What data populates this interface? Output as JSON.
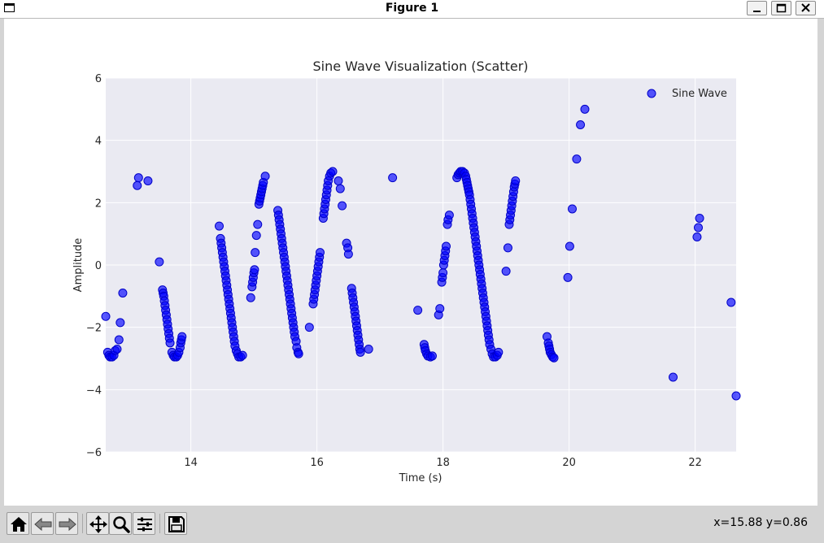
{
  "window": {
    "title": "Figure 1",
    "controls": [
      "minimize",
      "maximize",
      "close"
    ]
  },
  "toolbar": {
    "buttons": [
      "home-icon",
      "back-icon",
      "forward-icon",
      "pan-icon",
      "zoom-icon",
      "configure-icon",
      "save-icon"
    ],
    "coords": "x=15.88 y=0.86"
  },
  "chart_data": {
    "type": "scatter",
    "title": "Sine Wave Visualization (Scatter)",
    "xlabel": "Time (s)",
    "ylabel": "Amplitude",
    "xlim": [
      12.65,
      22.65
    ],
    "ylim": [
      -6,
      6
    ],
    "xticks": [
      14,
      16,
      18,
      20,
      22
    ],
    "yticks": [
      -6,
      -4,
      -2,
      0,
      2,
      4,
      6
    ],
    "grid": true,
    "legend": "top-right",
    "marker_color": "#0000ff",
    "plot_background": "#eaeaf2",
    "series": [
      {
        "name": "Sine Wave",
        "points": [
          [
            12.65,
            -1.65
          ],
          [
            12.68,
            -2.8
          ],
          [
            12.7,
            -2.9
          ],
          [
            12.72,
            -2.95
          ],
          [
            12.75,
            -2.95
          ],
          [
            12.78,
            -2.9
          ],
          [
            12.8,
            -2.75
          ],
          [
            12.83,
            -2.7
          ],
          [
            12.86,
            -2.4
          ],
          [
            12.88,
            -1.85
          ],
          [
            12.92,
            -0.9
          ],
          [
            13.15,
            2.55
          ],
          [
            13.17,
            2.8
          ],
          [
            13.32,
            2.7
          ],
          [
            13.5,
            0.1
          ],
          [
            13.55,
            -0.8
          ],
          [
            13.56,
            -0.9
          ],
          [
            13.57,
            -1.0
          ],
          [
            13.58,
            -1.15
          ],
          [
            13.59,
            -1.3
          ],
          [
            13.6,
            -1.45
          ],
          [
            13.61,
            -1.6
          ],
          [
            13.62,
            -1.75
          ],
          [
            13.63,
            -1.9
          ],
          [
            13.64,
            -2.05
          ],
          [
            13.65,
            -2.2
          ],
          [
            13.66,
            -2.35
          ],
          [
            13.67,
            -2.5
          ],
          [
            13.7,
            -2.8
          ],
          [
            13.72,
            -2.9
          ],
          [
            13.74,
            -2.95
          ],
          [
            13.77,
            -2.95
          ],
          [
            13.79,
            -2.9
          ],
          [
            13.81,
            -2.8
          ],
          [
            13.83,
            -2.65
          ],
          [
            13.84,
            -2.5
          ],
          [
            13.85,
            -2.4
          ],
          [
            13.86,
            -2.3
          ],
          [
            14.45,
            1.25
          ],
          [
            14.47,
            0.85
          ],
          [
            14.48,
            0.7
          ],
          [
            14.49,
            0.55
          ],
          [
            14.5,
            0.4
          ],
          [
            14.51,
            0.25
          ],
          [
            14.52,
            0.1
          ],
          [
            14.53,
            -0.05
          ],
          [
            14.54,
            -0.2
          ],
          [
            14.55,
            -0.35
          ],
          [
            14.56,
            -0.5
          ],
          [
            14.57,
            -0.65
          ],
          [
            14.58,
            -0.8
          ],
          [
            14.59,
            -0.95
          ],
          [
            14.6,
            -1.1
          ],
          [
            14.61,
            -1.25
          ],
          [
            14.62,
            -1.4
          ],
          [
            14.63,
            -1.55
          ],
          [
            14.64,
            -1.7
          ],
          [
            14.65,
            -1.85
          ],
          [
            14.66,
            -2.0
          ],
          [
            14.67,
            -2.15
          ],
          [
            14.68,
            -2.3
          ],
          [
            14.69,
            -2.45
          ],
          [
            14.7,
            -2.6
          ],
          [
            14.72,
            -2.75
          ],
          [
            14.74,
            -2.85
          ],
          [
            14.76,
            -2.95
          ],
          [
            14.79,
            -2.95
          ],
          [
            14.82,
            -2.9
          ],
          [
            14.95,
            -1.05
          ],
          [
            14.97,
            -0.7
          ],
          [
            14.98,
            -0.55
          ],
          [
            14.99,
            -0.4
          ],
          [
            15.0,
            -0.25
          ],
          [
            15.01,
            -0.15
          ],
          [
            15.02,
            0.4
          ],
          [
            15.04,
            0.95
          ],
          [
            15.06,
            1.3
          ],
          [
            15.08,
            1.95
          ],
          [
            15.09,
            2.05
          ],
          [
            15.1,
            2.15
          ],
          [
            15.11,
            2.25
          ],
          [
            15.12,
            2.35
          ],
          [
            15.13,
            2.45
          ],
          [
            15.14,
            2.55
          ],
          [
            15.15,
            2.65
          ],
          [
            15.18,
            2.85
          ],
          [
            15.38,
            1.75
          ],
          [
            15.39,
            1.6
          ],
          [
            15.4,
            1.45
          ],
          [
            15.41,
            1.3
          ],
          [
            15.42,
            1.15
          ],
          [
            15.43,
            1.0
          ],
          [
            15.44,
            0.85
          ],
          [
            15.45,
            0.7
          ],
          [
            15.46,
            0.55
          ],
          [
            15.47,
            0.4
          ],
          [
            15.48,
            0.25
          ],
          [
            15.49,
            0.1
          ],
          [
            15.5,
            -0.05
          ],
          [
            15.51,
            -0.2
          ],
          [
            15.52,
            -0.35
          ],
          [
            15.53,
            -0.5
          ],
          [
            15.54,
            -0.65
          ],
          [
            15.55,
            -0.8
          ],
          [
            15.56,
            -0.95
          ],
          [
            15.57,
            -1.1
          ],
          [
            15.58,
            -1.25
          ],
          [
            15.59,
            -1.4
          ],
          [
            15.6,
            -1.55
          ],
          [
            15.61,
            -1.7
          ],
          [
            15.62,
            -1.85
          ],
          [
            15.63,
            -2.0
          ],
          [
            15.64,
            -2.15
          ],
          [
            15.65,
            -2.3
          ],
          [
            15.67,
            -2.45
          ],
          [
            15.68,
            -2.65
          ],
          [
            15.7,
            -2.8
          ],
          [
            15.71,
            -2.85
          ],
          [
            15.88,
            -2.0
          ],
          [
            15.94,
            -1.25
          ],
          [
            15.95,
            -1.1
          ],
          [
            15.96,
            -0.95
          ],
          [
            15.97,
            -0.8
          ],
          [
            15.98,
            -0.65
          ],
          [
            15.99,
            -0.5
          ],
          [
            16.0,
            -0.35
          ],
          [
            16.01,
            -0.2
          ],
          [
            16.02,
            -0.05
          ],
          [
            16.03,
            0.1
          ],
          [
            16.04,
            0.25
          ],
          [
            16.05,
            0.4
          ],
          [
            16.1,
            1.5
          ],
          [
            16.11,
            1.65
          ],
          [
            16.12,
            1.8
          ],
          [
            16.13,
            1.95
          ],
          [
            16.14,
            2.1
          ],
          [
            16.15,
            2.25
          ],
          [
            16.16,
            2.4
          ],
          [
            16.17,
            2.55
          ],
          [
            16.18,
            2.7
          ],
          [
            16.2,
            2.85
          ],
          [
            16.22,
            2.95
          ],
          [
            16.25,
            3.0
          ],
          [
            16.34,
            2.7
          ],
          [
            16.37,
            2.45
          ],
          [
            16.4,
            1.9
          ],
          [
            16.47,
            0.7
          ],
          [
            16.49,
            0.55
          ],
          [
            16.5,
            0.35
          ],
          [
            16.55,
            -0.75
          ],
          [
            16.56,
            -0.9
          ],
          [
            16.57,
            -1.05
          ],
          [
            16.58,
            -1.2
          ],
          [
            16.59,
            -1.35
          ],
          [
            16.6,
            -1.5
          ],
          [
            16.61,
            -1.65
          ],
          [
            16.62,
            -1.8
          ],
          [
            16.63,
            -1.95
          ],
          [
            16.64,
            -2.1
          ],
          [
            16.65,
            -2.25
          ],
          [
            16.66,
            -2.4
          ],
          [
            16.67,
            -2.55
          ],
          [
            16.68,
            -2.7
          ],
          [
            16.69,
            -2.8
          ],
          [
            16.82,
            -2.7
          ],
          [
            17.2,
            2.8
          ],
          [
            17.6,
            -1.45
          ],
          [
            17.7,
            -2.55
          ],
          [
            17.71,
            -2.65
          ],
          [
            17.72,
            -2.75
          ],
          [
            17.74,
            -2.85
          ],
          [
            17.76,
            -2.92
          ],
          [
            17.8,
            -2.95
          ],
          [
            17.83,
            -2.92
          ],
          [
            17.93,
            -1.6
          ],
          [
            17.95,
            -1.4
          ],
          [
            17.98,
            -0.55
          ],
          [
            17.99,
            -0.4
          ],
          [
            18.0,
            -0.25
          ],
          [
            18.01,
            0.0
          ],
          [
            18.02,
            0.15
          ],
          [
            18.03,
            0.3
          ],
          [
            18.04,
            0.45
          ],
          [
            18.05,
            0.6
          ],
          [
            18.07,
            1.3
          ],
          [
            18.08,
            1.45
          ],
          [
            18.1,
            1.6
          ],
          [
            18.22,
            2.8
          ],
          [
            18.24,
            2.9
          ],
          [
            18.26,
            2.95
          ],
          [
            18.28,
            3.0
          ],
          [
            18.31,
            3.0
          ],
          [
            18.34,
            2.95
          ],
          [
            18.36,
            2.85
          ],
          [
            18.37,
            2.75
          ],
          [
            18.38,
            2.65
          ],
          [
            18.39,
            2.55
          ],
          [
            18.4,
            2.45
          ],
          [
            18.41,
            2.35
          ],
          [
            18.42,
            2.25
          ],
          [
            18.43,
            2.1
          ],
          [
            18.44,
            1.95
          ],
          [
            18.45,
            1.8
          ],
          [
            18.46,
            1.65
          ],
          [
            18.47,
            1.5
          ],
          [
            18.48,
            1.35
          ],
          [
            18.49,
            1.2
          ],
          [
            18.5,
            1.05
          ],
          [
            18.51,
            0.9
          ],
          [
            18.52,
            0.75
          ],
          [
            18.53,
            0.6
          ],
          [
            18.54,
            0.45
          ],
          [
            18.55,
            0.3
          ],
          [
            18.56,
            0.15
          ],
          [
            18.57,
            0.0
          ],
          [
            18.58,
            -0.15
          ],
          [
            18.59,
            -0.3
          ],
          [
            18.6,
            -0.45
          ],
          [
            18.61,
            -0.6
          ],
          [
            18.62,
            -0.75
          ],
          [
            18.63,
            -0.9
          ],
          [
            18.64,
            -1.05
          ],
          [
            18.65,
            -1.2
          ],
          [
            18.66,
            -1.35
          ],
          [
            18.67,
            -1.5
          ],
          [
            18.68,
            -1.65
          ],
          [
            18.69,
            -1.8
          ],
          [
            18.7,
            -1.95
          ],
          [
            18.71,
            -2.1
          ],
          [
            18.72,
            -2.25
          ],
          [
            18.73,
            -2.4
          ],
          [
            18.74,
            -2.55
          ],
          [
            18.76,
            -2.7
          ],
          [
            18.78,
            -2.85
          ],
          [
            18.8,
            -2.95
          ],
          [
            18.83,
            -2.95
          ],
          [
            18.86,
            -2.9
          ],
          [
            18.88,
            -2.8
          ],
          [
            19.0,
            -0.2
          ],
          [
            19.03,
            0.55
          ],
          [
            19.05,
            1.3
          ],
          [
            19.06,
            1.45
          ],
          [
            19.07,
            1.6
          ],
          [
            19.08,
            1.75
          ],
          [
            19.09,
            1.9
          ],
          [
            19.1,
            2.05
          ],
          [
            19.11,
            2.2
          ],
          [
            19.12,
            2.35
          ],
          [
            19.13,
            2.5
          ],
          [
            19.14,
            2.6
          ],
          [
            19.15,
            2.7
          ],
          [
            19.65,
            -2.3
          ],
          [
            19.67,
            -2.5
          ],
          [
            19.68,
            -2.6
          ],
          [
            19.69,
            -2.7
          ],
          [
            19.7,
            -2.8
          ],
          [
            19.72,
            -2.88
          ],
          [
            19.74,
            -2.95
          ],
          [
            19.76,
            -2.98
          ],
          [
            19.98,
            -0.4
          ],
          [
            20.01,
            0.6
          ],
          [
            20.05,
            1.8
          ],
          [
            20.12,
            3.4
          ],
          [
            20.18,
            4.5
          ],
          [
            20.25,
            5.0
          ],
          [
            21.65,
            -3.6
          ],
          [
            22.03,
            0.9
          ],
          [
            22.05,
            1.2
          ],
          [
            22.07,
            1.5
          ],
          [
            22.57,
            -1.2
          ],
          [
            22.65,
            -4.2
          ]
        ]
      }
    ]
  }
}
